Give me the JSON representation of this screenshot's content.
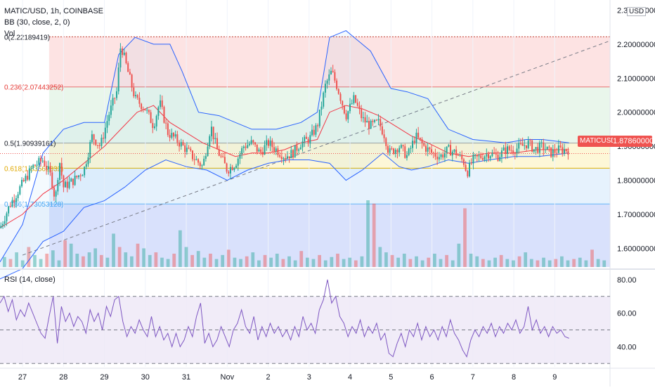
{
  "header": {
    "symbol_line": "MATIC/USD, 1h, COINBASE",
    "bb_line": "BB (30, close, 2, 0)",
    "vol_line": "Vol",
    "rsi_line": "RSI (14, close)"
  },
  "currency_label": "USD",
  "last_price": {
    "symbol": "MATICUSD",
    "value": "1.87860000"
  },
  "colors": {
    "up": "#26a69a",
    "down": "#ef5350",
    "bb_band": "#2962ff",
    "bb_basis": "#f23645",
    "rsi_line": "#7e57c2",
    "rsi_fill": "#ede7f6",
    "trendline": "#787b86",
    "fib_red": "#fddede",
    "fib_green": "#e5f5e8",
    "fib_yellow": "#fdf6d0",
    "fib_lightblue": "#e2f0fd",
    "fib_blue": "#d2dcfb"
  },
  "chart_data": [
    {
      "type": "candlestick",
      "title": "MATIC/USD, 1h, COINBASE",
      "price_axis_ticks": [
        "2.30000000",
        "2.20000000",
        "2.10000000",
        "2.00000000",
        "1.90000000",
        "1.80000000",
        "1.70000000",
        "1.60000000"
      ],
      "price_axis_values": [
        2.3,
        2.2,
        2.1,
        2.0,
        1.9,
        1.8,
        1.7,
        1.6
      ],
      "ylim": [
        1.545,
        2.33
      ],
      "time_axis_labels": [
        "27",
        "28",
        "29",
        "30",
        "31",
        "Nov",
        "2",
        "3",
        "4",
        "5",
        "6",
        "7",
        "8",
        "9"
      ],
      "time_axis_days": [
        0,
        1,
        2,
        3,
        4,
        5,
        6,
        7,
        8,
        9,
        10,
        11,
        12,
        13
      ],
      "xlim_days": [
        -0.55,
        14.35
      ],
      "close_path": [
        [
          -0.55,
          1.66
        ],
        [
          -0.3,
          1.73
        ],
        [
          0.0,
          1.79
        ],
        [
          0.25,
          1.84
        ],
        [
          0.5,
          1.86
        ],
        [
          0.7,
          1.81
        ],
        [
          0.8,
          1.74
        ],
        [
          0.9,
          1.86
        ],
        [
          1.0,
          1.78
        ],
        [
          1.25,
          1.8
        ],
        [
          1.5,
          1.83
        ],
        [
          1.7,
          1.93
        ],
        [
          1.9,
          1.9
        ],
        [
          2.1,
          1.99
        ],
        [
          2.3,
          2.06
        ],
        [
          2.4,
          2.2
        ],
        [
          2.55,
          2.13
        ],
        [
          2.75,
          2.04
        ],
        [
          3.0,
          2.01
        ],
        [
          3.2,
          1.96
        ],
        [
          3.35,
          2.03
        ],
        [
          3.55,
          1.94
        ],
        [
          3.75,
          1.92
        ],
        [
          4.0,
          1.89
        ],
        [
          4.15,
          1.87
        ],
        [
          4.4,
          1.84
        ],
        [
          4.6,
          1.96
        ],
        [
          4.75,
          1.89
        ],
        [
          5.0,
          1.83
        ],
        [
          5.2,
          1.85
        ],
        [
          5.4,
          1.9
        ],
        [
          5.6,
          1.91
        ],
        [
          5.8,
          1.88
        ],
        [
          6.0,
          1.91
        ],
        [
          6.2,
          1.89
        ],
        [
          6.4,
          1.87
        ],
        [
          6.6,
          1.88
        ],
        [
          6.8,
          1.91
        ],
        [
          7.0,
          1.92
        ],
        [
          7.2,
          1.96
        ],
        [
          7.4,
          2.08
        ],
        [
          7.55,
          2.12
        ],
        [
          7.7,
          2.07
        ],
        [
          7.9,
          1.99
        ],
        [
          8.1,
          2.04
        ],
        [
          8.3,
          1.98
        ],
        [
          8.5,
          1.96
        ],
        [
          8.7,
          1.97
        ],
        [
          8.85,
          1.93
        ],
        [
          8.95,
          1.88
        ],
        [
          9.2,
          1.9
        ],
        [
          9.4,
          1.87
        ],
        [
          9.6,
          1.93
        ],
        [
          9.8,
          1.9
        ],
        [
          10.0,
          1.88
        ],
        [
          10.2,
          1.87
        ],
        [
          10.4,
          1.89
        ],
        [
          10.6,
          1.88
        ],
        [
          10.8,
          1.85
        ],
        [
          10.85,
          1.82
        ],
        [
          11.0,
          1.86
        ],
        [
          11.2,
          1.87
        ],
        [
          11.4,
          1.88
        ],
        [
          11.6,
          1.87
        ],
        [
          11.8,
          1.89
        ],
        [
          12.0,
          1.89
        ],
        [
          12.2,
          1.9
        ],
        [
          12.35,
          1.91
        ],
        [
          12.5,
          1.89
        ],
        [
          12.7,
          1.9
        ],
        [
          12.9,
          1.88
        ],
        [
          13.1,
          1.89
        ],
        [
          13.35,
          1.89
        ]
      ],
      "bollinger_upper": [
        [
          -0.55,
          1.56
        ],
        [
          0.0,
          1.67
        ],
        [
          0.5,
          1.88
        ],
        [
          1.0,
          1.95
        ],
        [
          1.5,
          1.97
        ],
        [
          2.0,
          1.97
        ],
        [
          2.35,
          2.17
        ],
        [
          2.75,
          2.22
        ],
        [
          3.2,
          2.2
        ],
        [
          3.6,
          2.2
        ],
        [
          3.9,
          2.12
        ],
        [
          4.3,
          2.0
        ],
        [
          4.8,
          1.99
        ],
        [
          5.2,
          1.97
        ],
        [
          5.6,
          1.95
        ],
        [
          6.2,
          1.95
        ],
        [
          6.8,
          1.97
        ],
        [
          7.2,
          2.0
        ],
        [
          7.5,
          2.22
        ],
        [
          7.9,
          2.24
        ],
        [
          8.5,
          2.18
        ],
        [
          9.0,
          2.07
        ],
        [
          9.4,
          2.06
        ],
        [
          9.9,
          2.04
        ],
        [
          10.4,
          1.95
        ],
        [
          11.0,
          1.92
        ],
        [
          11.8,
          1.91
        ],
        [
          12.3,
          1.92
        ],
        [
          12.7,
          1.92
        ],
        [
          13.35,
          1.91
        ]
      ],
      "bollinger_basis": [
        [
          -0.55,
          1.66
        ],
        [
          0.0,
          1.7
        ],
        [
          0.5,
          1.76
        ],
        [
          1.0,
          1.8
        ],
        [
          1.5,
          1.85
        ],
        [
          2.0,
          1.9
        ],
        [
          2.4,
          1.95
        ],
        [
          2.8,
          2.0
        ],
        [
          3.2,
          2.02
        ],
        [
          3.6,
          1.97
        ],
        [
          4.0,
          1.94
        ],
        [
          4.4,
          1.91
        ],
        [
          4.8,
          1.89
        ],
        [
          5.2,
          1.87
        ],
        [
          5.6,
          1.88
        ],
        [
          6.0,
          1.88
        ],
        [
          6.4,
          1.89
        ],
        [
          6.8,
          1.91
        ],
        [
          7.2,
          1.92
        ],
        [
          7.5,
          2.0
        ],
        [
          7.9,
          2.02
        ],
        [
          8.3,
          2.01
        ],
        [
          8.7,
          1.99
        ],
        [
          9.1,
          1.96
        ],
        [
          9.5,
          1.93
        ],
        [
          9.9,
          1.91
        ],
        [
          10.4,
          1.88
        ],
        [
          10.9,
          1.87
        ],
        [
          11.4,
          1.88
        ],
        [
          12.0,
          1.88
        ],
        [
          12.6,
          1.89
        ],
        [
          13.35,
          1.89
        ]
      ],
      "bollinger_lower": [
        [
          -0.55,
          1.51
        ],
        [
          0.0,
          1.54
        ],
        [
          0.5,
          1.62
        ],
        [
          1.0,
          1.65
        ],
        [
          1.5,
          1.72
        ],
        [
          2.0,
          1.74
        ],
        [
          2.5,
          1.78
        ],
        [
          3.0,
          1.83
        ],
        [
          3.5,
          1.86
        ],
        [
          4.0,
          1.84
        ],
        [
          4.5,
          1.83
        ],
        [
          5.0,
          1.8
        ],
        [
          5.5,
          1.83
        ],
        [
          6.0,
          1.85
        ],
        [
          6.5,
          1.86
        ],
        [
          7.0,
          1.86
        ],
        [
          7.5,
          1.85
        ],
        [
          7.9,
          1.8
        ],
        [
          8.3,
          1.83
        ],
        [
          8.8,
          1.88
        ],
        [
          9.2,
          1.84
        ],
        [
          9.5,
          1.83
        ],
        [
          9.9,
          1.84
        ],
        [
          10.4,
          1.86
        ],
        [
          10.9,
          1.85
        ],
        [
          11.4,
          1.86
        ],
        [
          12.0,
          1.87
        ],
        [
          12.6,
          1.87
        ],
        [
          13.35,
          1.88
        ]
      ],
      "trendline": [
        [
          0.0,
          1.58
        ],
        [
          14.35,
          2.21
        ]
      ],
      "fibonacci": {
        "levels": [
          {
            "label": "0(2.22189419)",
            "value": 2.2219
          },
          {
            "label": "0.236(2.07443252)",
            "value": 2.0744
          },
          {
            "label": "0.5(1.90939161)",
            "value": 1.9094
          },
          {
            "label": "0.618(1.83562332)",
            "value": 1.8356
          },
          {
            "label": "0.786(1.73053128)",
            "value": 1.7305
          }
        ],
        "zone_colors": [
          "fib_red",
          "fib_green",
          "fib_yellow",
          "fib_lightblue",
          "fib_blue"
        ],
        "start_day": 0.65
      }
    },
    {
      "type": "bar",
      "title": "Vol",
      "description_source": "volume histogram overlay",
      "volume_relative": [
        0.15,
        0.12,
        0.22,
        0.1,
        0.3,
        0.18,
        0.12,
        0.2,
        0.25,
        0.1,
        0.4,
        0.35,
        0.2,
        0.16,
        0.22,
        0.28,
        0.18,
        0.14,
        0.5,
        0.3,
        0.22,
        0.16,
        0.35,
        0.28,
        0.18,
        0.22,
        0.14,
        0.12,
        0.2,
        0.55,
        0.3,
        0.18,
        0.24,
        0.14,
        0.2,
        0.12,
        0.18,
        0.26,
        0.14,
        0.12,
        0.16,
        0.22,
        0.1,
        0.18,
        0.14,
        0.2,
        0.12,
        0.16,
        0.1,
        0.24,
        0.14,
        0.12,
        0.18,
        0.1,
        0.15,
        0.2,
        0.12,
        0.14,
        0.1,
        0.16,
        1.0,
        0.95,
        0.3,
        0.22,
        0.18,
        0.14,
        0.2,
        0.12,
        0.16,
        0.1,
        0.14,
        0.2,
        0.12,
        0.18,
        0.1,
        0.35,
        0.88,
        0.2,
        0.16,
        0.12,
        0.1,
        0.14,
        0.18,
        0.12,
        0.1,
        0.16,
        0.22,
        0.12,
        0.1,
        0.14,
        0.1,
        0.12,
        0.16,
        0.1,
        0.12,
        0.14,
        0.1,
        0.26,
        0.12,
        0.1
      ]
    },
    {
      "type": "line",
      "title": "RSI (14, close)",
      "y_ticks": [
        "80.00",
        "60.00",
        "40.00"
      ],
      "y_tick_values": [
        80,
        60,
        40
      ],
      "ylim": [
        28,
        85
      ],
      "bands": {
        "upper": 70,
        "middle": 50,
        "lower": 30
      },
      "rsi": [
        [
          -0.55,
          66
        ],
        [
          -0.45,
          70
        ],
        [
          -0.35,
          61
        ],
        [
          -0.25,
          68
        ],
        [
          -0.15,
          56
        ],
        [
          -0.05,
          62
        ],
        [
          0.05,
          58
        ],
        [
          0.15,
          66
        ],
        [
          0.25,
          60
        ],
        [
          0.35,
          54
        ],
        [
          0.45,
          48
        ],
        [
          0.55,
          45
        ],
        [
          0.65,
          58
        ],
        [
          0.75,
          70
        ],
        [
          0.85,
          42
        ],
        [
          0.95,
          64
        ],
        [
          1.05,
          55
        ],
        [
          1.15,
          60
        ],
        [
          1.25,
          52
        ],
        [
          1.35,
          58
        ],
        [
          1.45,
          55
        ],
        [
          1.55,
          48
        ],
        [
          1.65,
          62
        ],
        [
          1.75,
          55
        ],
        [
          1.85,
          60
        ],
        [
          1.95,
          50
        ],
        [
          2.05,
          64
        ],
        [
          2.15,
          58
        ],
        [
          2.25,
          68
        ],
        [
          2.35,
          70
        ],
        [
          2.45,
          55
        ],
        [
          2.55,
          46
        ],
        [
          2.65,
          52
        ],
        [
          2.75,
          48
        ],
        [
          2.85,
          56
        ],
        [
          2.95,
          50
        ],
        [
          3.05,
          46
        ],
        [
          3.15,
          58
        ],
        [
          3.25,
          46
        ],
        [
          3.35,
          52
        ],
        [
          3.45,
          44
        ],
        [
          3.55,
          48
        ],
        [
          3.65,
          40
        ],
        [
          3.75,
          48
        ],
        [
          3.85,
          40
        ],
        [
          3.95,
          44
        ],
        [
          4.05,
          52
        ],
        [
          4.15,
          46
        ],
        [
          4.25,
          58
        ],
        [
          4.35,
          66
        ],
        [
          4.45,
          42
        ],
        [
          4.55,
          48
        ],
        [
          4.65,
          40
        ],
        [
          4.75,
          44
        ],
        [
          4.85,
          52
        ],
        [
          4.95,
          46
        ],
        [
          5.05,
          40
        ],
        [
          5.15,
          50
        ],
        [
          5.25,
          54
        ],
        [
          5.35,
          62
        ],
        [
          5.45,
          52
        ],
        [
          5.55,
          48
        ],
        [
          5.65,
          58
        ],
        [
          5.75,
          44
        ],
        [
          5.85,
          52
        ],
        [
          5.95,
          46
        ],
        [
          6.05,
          54
        ],
        [
          6.15,
          48
        ],
        [
          6.25,
          52
        ],
        [
          6.35,
          46
        ],
        [
          6.45,
          50
        ],
        [
          6.55,
          44
        ],
        [
          6.65,
          52
        ],
        [
          6.75,
          46
        ],
        [
          6.85,
          58
        ],
        [
          6.95,
          50
        ],
        [
          7.05,
          54
        ],
        [
          7.15,
          48
        ],
        [
          7.25,
          62
        ],
        [
          7.35,
          68
        ],
        [
          7.45,
          80
        ],
        [
          7.55,
          66
        ],
        [
          7.65,
          70
        ],
        [
          7.75,
          58
        ],
        [
          7.85,
          54
        ],
        [
          7.95,
          46
        ],
        [
          8.05,
          52
        ],
        [
          8.15,
          48
        ],
        [
          8.25,
          56
        ],
        [
          8.35,
          46
        ],
        [
          8.45,
          52
        ],
        [
          8.55,
          48
        ],
        [
          8.65,
          54
        ],
        [
          8.75,
          44
        ],
        [
          8.85,
          48
        ],
        [
          8.95,
          36
        ],
        [
          9.05,
          34
        ],
        [
          9.15,
          42
        ],
        [
          9.25,
          48
        ],
        [
          9.35,
          40
        ],
        [
          9.45,
          50
        ],
        [
          9.55,
          46
        ],
        [
          9.65,
          54
        ],
        [
          9.75,
          44
        ],
        [
          9.85,
          52
        ],
        [
          9.95,
          46
        ],
        [
          10.05,
          50
        ],
        [
          10.15,
          44
        ],
        [
          10.25,
          52
        ],
        [
          10.35,
          46
        ],
        [
          10.45,
          56
        ],
        [
          10.55,
          48
        ],
        [
          10.65,
          44
        ],
        [
          10.75,
          38
        ],
        [
          10.85,
          34
        ],
        [
          10.95,
          44
        ],
        [
          11.05,
          50
        ],
        [
          11.15,
          46
        ],
        [
          11.25,
          52
        ],
        [
          11.35,
          48
        ],
        [
          11.45,
          54
        ],
        [
          11.55,
          46
        ],
        [
          11.65,
          52
        ],
        [
          11.75,
          48
        ],
        [
          11.85,
          54
        ],
        [
          11.95,
          50
        ],
        [
          12.05,
          56
        ],
        [
          12.15,
          48
        ],
        [
          12.25,
          52
        ],
        [
          12.35,
          64
        ],
        [
          12.45,
          50
        ],
        [
          12.55,
          56
        ],
        [
          12.65,
          48
        ],
        [
          12.75,
          52
        ],
        [
          12.85,
          46
        ],
        [
          12.95,
          52
        ],
        [
          13.05,
          48
        ],
        [
          13.15,
          50
        ],
        [
          13.25,
          46
        ],
        [
          13.35,
          45
        ]
      ]
    }
  ]
}
